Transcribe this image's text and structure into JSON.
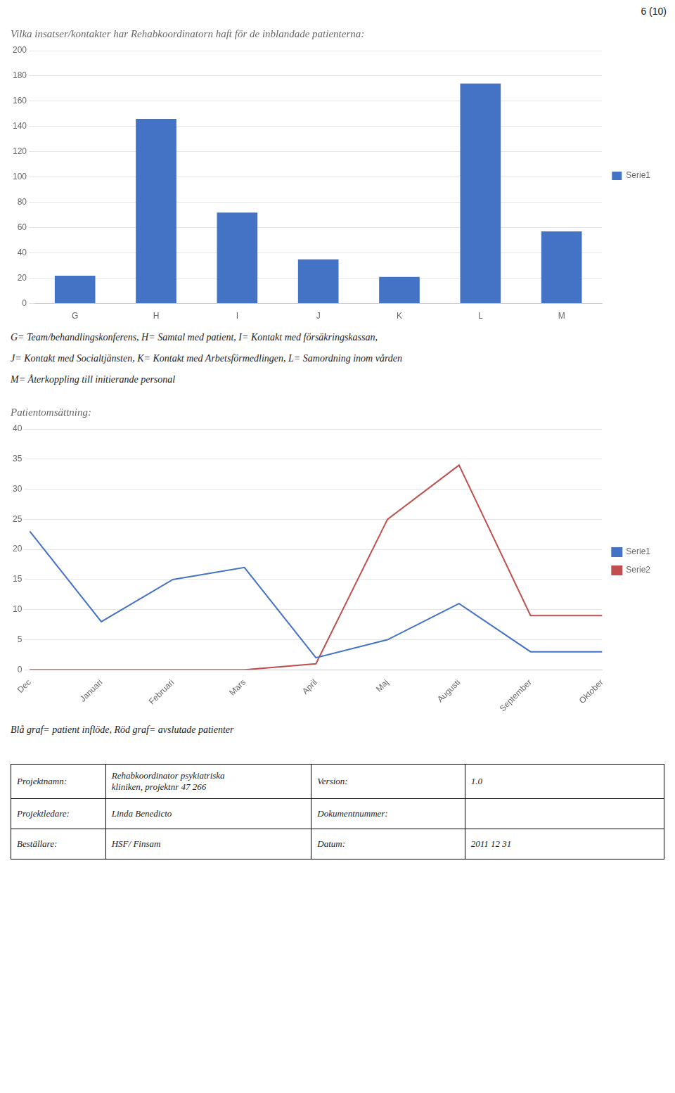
{
  "page_number": "6 (10)",
  "chart_data": [
    {
      "type": "bar",
      "title": "Vilka insatser/kontakter har Rehabkoordinatorn haft för de inblandade patienterna:",
      "categories": [
        "G",
        "H",
        "I",
        "J",
        "K",
        "L",
        "M"
      ],
      "series": [
        {
          "name": "Serie1",
          "color": "#4472C4",
          "values": [
            22,
            146,
            72,
            35,
            21,
            174,
            57
          ]
        }
      ],
      "ylim": [
        0,
        200
      ],
      "yticks": [
        0,
        20,
        40,
        60,
        80,
        100,
        120,
        140,
        160,
        180,
        200
      ],
      "grid": true,
      "legend": "right",
      "annotations": [
        "G= Team/behandlingskonferens, H= Samtal med patient, I= Kontakt med försäkringskassan,",
        "J= Kontakt med Socialtjänsten, K= Kontakt med Arbetsförmedlingen, L= Samordning inom vården",
        "M= Återkoppling till initierande personal"
      ]
    },
    {
      "type": "line",
      "title": "Patientomsättning:",
      "categories": [
        "Dec",
        "Januari",
        "Februari",
        "Mars",
        "April",
        "Maj",
        "Augusti",
        "September",
        "Oktober"
      ],
      "series": [
        {
          "name": "Serie1",
          "color": "#4472C4",
          "values": [
            23,
            8,
            15,
            17,
            2,
            5,
            11,
            3,
            3
          ]
        },
        {
          "name": "Serie2",
          "color": "#C0504D",
          "values": [
            0,
            0,
            0,
            0,
            1,
            25,
            34,
            9,
            9
          ]
        }
      ],
      "ylim": [
        0,
        40
      ],
      "yticks": [
        0,
        5,
        10,
        15,
        20,
        25,
        30,
        35,
        40
      ],
      "grid": true,
      "legend": "right",
      "annotations": [
        "Blå graf= patient inflöde, Röd graf= avslutade patienter"
      ]
    }
  ],
  "table": {
    "rows": [
      [
        "Projektnamn:",
        "Rehabkoordinator psykiatriska\nkliniken, projektnr 47 266",
        "Version:",
        "1.0"
      ],
      [
        "Projektledare:",
        "Linda Benedicto",
        "Dokumentnummer:",
        null
      ],
      [
        "Beställare:",
        "HSF/ Finsam",
        "Datum:",
        "2011 12 31"
      ]
    ]
  }
}
